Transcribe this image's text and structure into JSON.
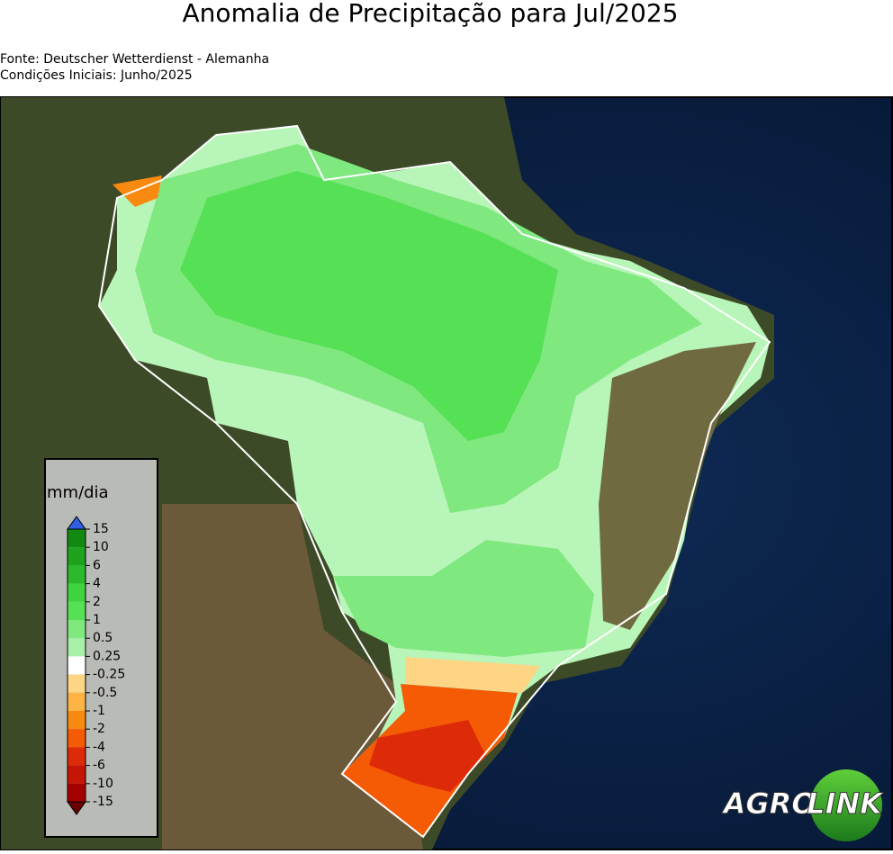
{
  "header": {
    "title": "Anomalia de Precipitação para Jul/2025",
    "source": "Fonte: Deutscher Wetterdienst - Alemanha",
    "initial": "Condições Iniciais: Junho/2025"
  },
  "colorbar": {
    "label": "mm/dia",
    "ticks": [
      15,
      10,
      6,
      4,
      2,
      1,
      0.5,
      0.25,
      -0.25,
      -0.5,
      -1,
      -2,
      -4,
      -6,
      -10,
      -15
    ],
    "colors": [
      "#128a12",
      "#1fa31f",
      "#2cba2c",
      "#3fd43f",
      "#55e055",
      "#7fe87f",
      "#a8f0a8",
      "#ffffff",
      "#fdd585",
      "#fdb445",
      "#f98a10",
      "#f55a05",
      "#dd2a08",
      "#c41505",
      "#a50000"
    ],
    "extend_colors": [
      "#3060e0",
      "#6b0000"
    ]
  },
  "logo": {
    "left": "AGRO",
    "right": "LINK"
  }
}
